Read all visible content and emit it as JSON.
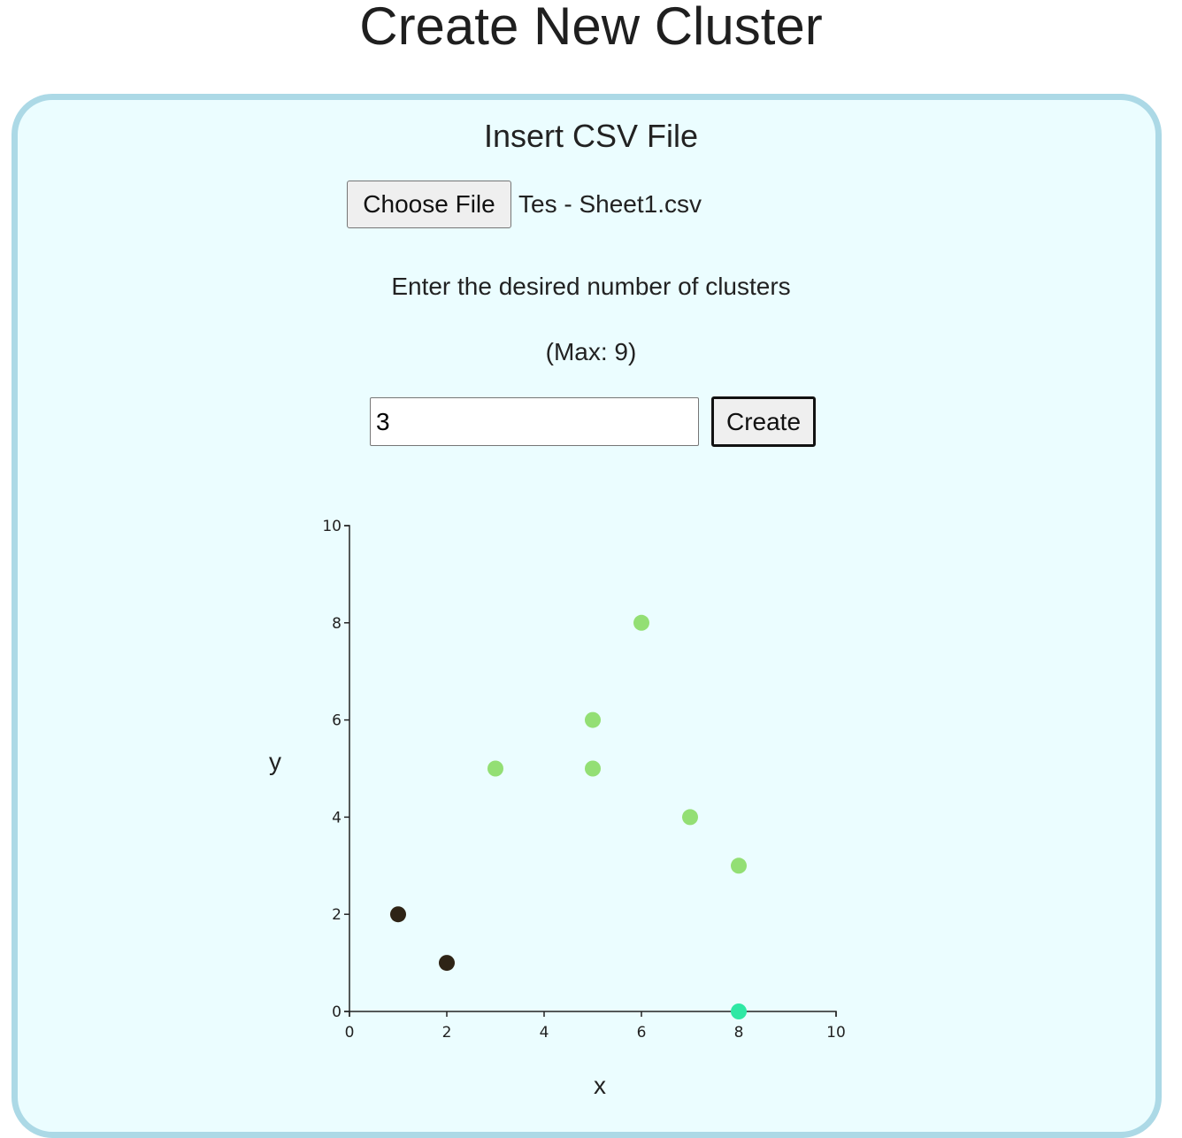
{
  "page": {
    "title": "Create New Cluster"
  },
  "upload": {
    "section_title": "Insert CSV File",
    "choose_file_label": "Choose File",
    "file_name": "Tes - Sheet1.csv"
  },
  "clusters": {
    "prompt": "Enter the desired number of clusters",
    "max_note": "(Max: 9)",
    "input_value": "3",
    "create_label": "Create"
  },
  "colors": {
    "panel_background": "#ebfdff",
    "panel_border": "#acd9e6",
    "cluster_dark": "#2e2416",
    "cluster_light_green": "#93df74",
    "cluster_teal": "#2ee8a4"
  },
  "chart_data": {
    "type": "scatter",
    "xlabel": "x",
    "ylabel": "y",
    "xlim": [
      0,
      10
    ],
    "ylim": [
      0,
      10
    ],
    "x_ticks": [
      0,
      2,
      4,
      6,
      8,
      10
    ],
    "y_ticks": [
      0,
      2,
      4,
      6,
      8,
      10
    ],
    "grid": false,
    "series": [
      {
        "color": "#2e2416",
        "points": [
          {
            "x": 1,
            "y": 2
          },
          {
            "x": 2,
            "y": 1
          }
        ]
      },
      {
        "color": "#93df74",
        "points": [
          {
            "x": 3,
            "y": 5
          },
          {
            "x": 5,
            "y": 6
          },
          {
            "x": 5,
            "y": 5
          },
          {
            "x": 6,
            "y": 8
          },
          {
            "x": 7,
            "y": 4
          },
          {
            "x": 8,
            "y": 3
          }
        ]
      },
      {
        "color": "#2ee8a4",
        "points": [
          {
            "x": 8,
            "y": 0
          }
        ]
      }
    ]
  }
}
